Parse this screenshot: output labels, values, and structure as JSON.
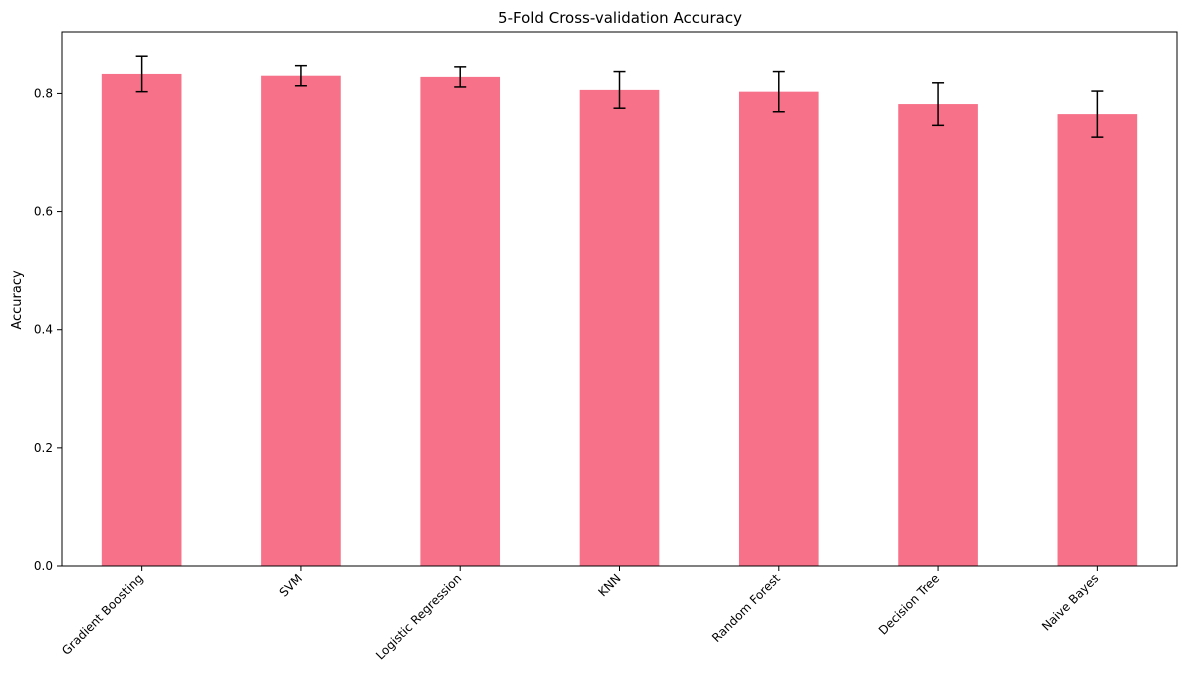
{
  "chart_data": {
    "type": "bar",
    "title": "5-Fold Cross-validation Accuracy",
    "xlabel": "",
    "ylabel": "Accuracy",
    "ylim": [
      0,
      0.904
    ],
    "yticks": [
      0.0,
      0.2,
      0.4,
      0.6,
      0.8
    ],
    "ytick_labels": [
      "0.0",
      "0.2",
      "0.4",
      "0.6",
      "0.8"
    ],
    "categories": [
      "Gradient Boosting",
      "SVM",
      "Logistic Regression",
      "KNN",
      "Random Forest",
      "Decision Tree",
      "Naive Bayes"
    ],
    "values": [
      0.833,
      0.83,
      0.828,
      0.806,
      0.803,
      0.782,
      0.765
    ],
    "errors": [
      0.03,
      0.017,
      0.017,
      0.031,
      0.034,
      0.036,
      0.039
    ],
    "grid": false,
    "colors": {
      "bar": "#f77189",
      "error": "#000000",
      "axis": "#000000"
    }
  }
}
